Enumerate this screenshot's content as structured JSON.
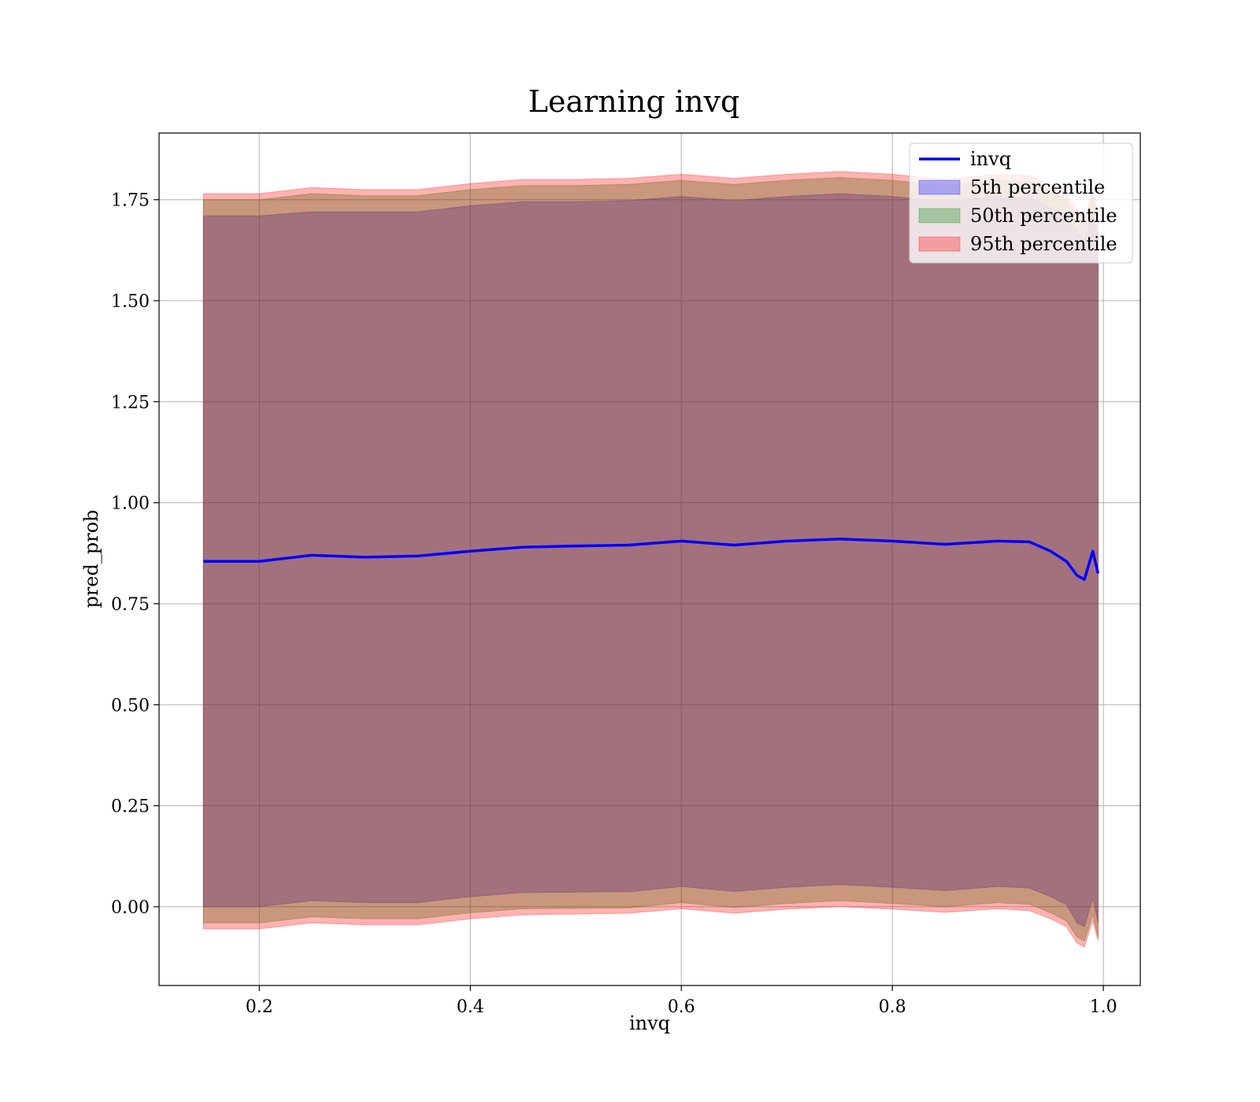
{
  "chart_data": {
    "type": "area",
    "title": "Learning invq",
    "xlabel": "invq",
    "ylabel": "pred_prob",
    "xlim": [
      0.105,
      1.035
    ],
    "ylim": [
      -0.195,
      1.915
    ],
    "xticks": [
      0.2,
      0.4,
      0.6,
      0.8,
      1.0
    ],
    "xtick_labels": [
      "0.2",
      "0.4",
      "0.6",
      "0.8",
      "1.0"
    ],
    "yticks": [
      0.0,
      0.25,
      0.5,
      0.75,
      1.0,
      1.25,
      1.5,
      1.75
    ],
    "ytick_labels": [
      "0.00",
      "0.25",
      "0.50",
      "0.75",
      "1.00",
      "1.25",
      "1.50",
      "1.75"
    ],
    "grid": true,
    "legend_position": "top-right",
    "x": [
      0.147,
      0.2,
      0.25,
      0.3,
      0.35,
      0.4,
      0.45,
      0.5,
      0.55,
      0.6,
      0.65,
      0.7,
      0.75,
      0.8,
      0.85,
      0.9,
      0.93,
      0.95,
      0.965,
      0.975,
      0.982,
      0.99,
      0.995
    ],
    "series": [
      {
        "name": "invq",
        "kind": "line",
        "color": "#0000ff",
        "values": [
          0.855,
          0.855,
          0.87,
          0.865,
          0.868,
          0.88,
          0.89,
          0.893,
          0.895,
          0.905,
          0.895,
          0.905,
          0.91,
          0.905,
          0.897,
          0.905,
          0.903,
          0.88,
          0.855,
          0.82,
          0.81,
          0.88,
          0.825
        ]
      },
      {
        "name": "5th percentile",
        "kind": "band",
        "color": "#0000ff",
        "lower": [
          0.0,
          0.0,
          0.015,
          0.01,
          0.01,
          0.025,
          0.035,
          0.036,
          0.037,
          0.05,
          0.038,
          0.048,
          0.055,
          0.048,
          0.04,
          0.05,
          0.046,
          0.025,
          0.005,
          -0.04,
          -0.05,
          0.02,
          -0.04
        ],
        "upper": [
          1.71,
          1.71,
          1.72,
          1.72,
          1.72,
          1.735,
          1.745,
          1.745,
          1.748,
          1.758,
          1.748,
          1.758,
          1.765,
          1.758,
          1.745,
          1.758,
          1.755,
          1.73,
          1.71,
          1.67,
          1.65,
          1.72,
          1.66
        ]
      },
      {
        "name": "50th percentile",
        "kind": "band",
        "color": "#008000",
        "lower": [
          -0.04,
          -0.04,
          -0.025,
          -0.03,
          -0.03,
          -0.015,
          -0.005,
          -0.004,
          -0.003,
          0.01,
          -0.002,
          0.008,
          0.015,
          0.008,
          0.0,
          0.01,
          0.006,
          -0.015,
          -0.035,
          -0.075,
          -0.085,
          -0.02,
          -0.075
        ],
        "upper": [
          1.75,
          1.75,
          1.765,
          1.76,
          1.76,
          1.775,
          1.785,
          1.785,
          1.788,
          1.798,
          1.788,
          1.798,
          1.805,
          1.798,
          1.785,
          1.798,
          1.795,
          1.77,
          1.75,
          1.71,
          1.69,
          1.76,
          1.7
        ]
      },
      {
        "name": "95th percentile",
        "kind": "band",
        "color": "#ff0000",
        "lower": [
          -0.055,
          -0.055,
          -0.04,
          -0.045,
          -0.045,
          -0.03,
          -0.02,
          -0.018,
          -0.016,
          -0.005,
          -0.016,
          -0.006,
          0.0,
          -0.006,
          -0.014,
          -0.005,
          -0.01,
          -0.03,
          -0.05,
          -0.09,
          -0.1,
          -0.035,
          -0.085
        ],
        "upper": [
          1.765,
          1.765,
          1.78,
          1.775,
          1.775,
          1.79,
          1.8,
          1.8,
          1.803,
          1.813,
          1.803,
          1.813,
          1.82,
          1.813,
          1.8,
          1.813,
          1.81,
          1.785,
          1.765,
          1.725,
          1.705,
          1.775,
          1.715
        ]
      }
    ]
  }
}
